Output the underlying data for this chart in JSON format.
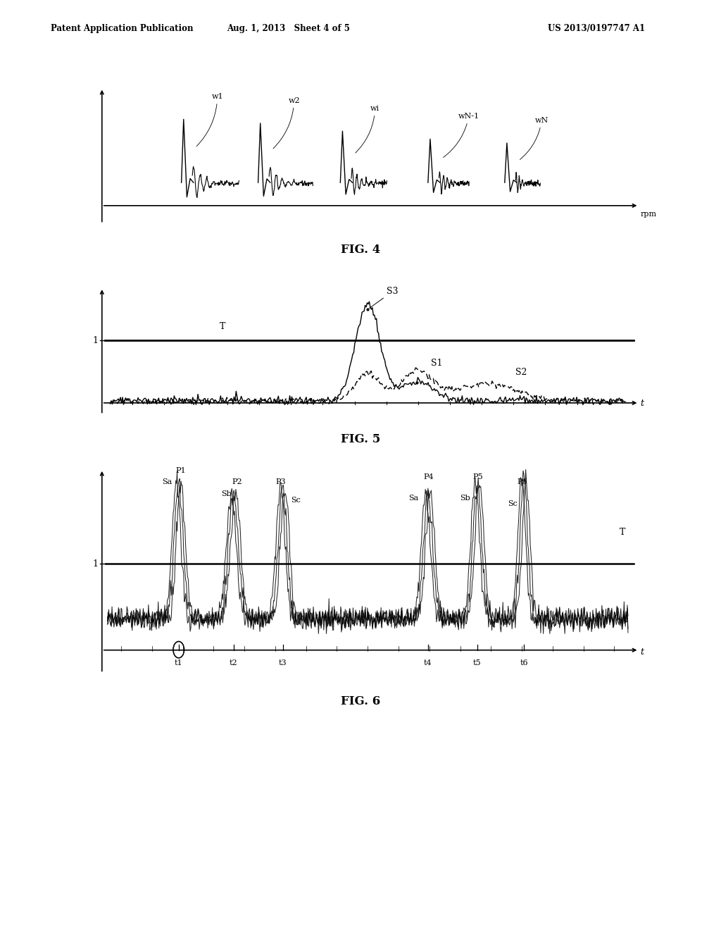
{
  "bg_color": "#ffffff",
  "text_color": "#000000",
  "header_left": "Patent Application Publication",
  "header_mid": "Aug. 1, 2013   Sheet 4 of 5",
  "header_right": "US 2013/0197747 A1",
  "fig4_caption": "FIG. 4",
  "fig5_caption": "FIG. 5",
  "fig6_caption": "FIG. 6",
  "fig4_xlabel": "rpm",
  "fig5_xlabel": "t",
  "fig6_xlabel": "t",
  "fig4_labels": [
    "w1",
    "w2",
    "wi",
    "wN-1",
    "wN"
  ],
  "fig6_time_labels": [
    "t1",
    "t2",
    "t3",
    "t4",
    "t5",
    "t6"
  ]
}
